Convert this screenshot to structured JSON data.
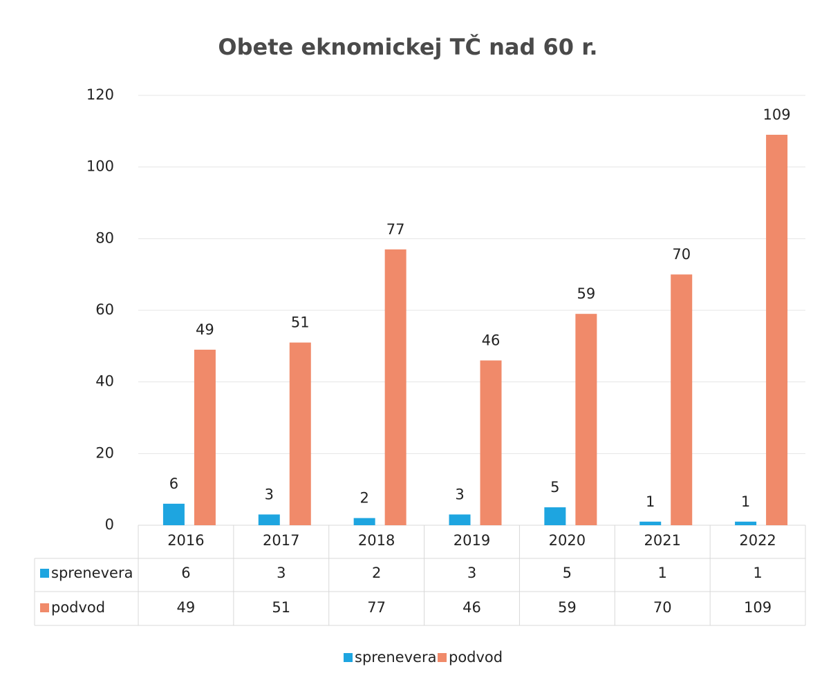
{
  "chart_data": {
    "type": "bar",
    "title": "Obete eknomickej TČ nad 60 r.",
    "categories": [
      "2016",
      "2017",
      "2018",
      "2019",
      "2020",
      "2021",
      "2022"
    ],
    "series": [
      {
        "name": "sprenevera",
        "color": "#1ea5e0",
        "values": [
          6,
          3,
          2,
          3,
          5,
          1,
          1
        ]
      },
      {
        "name": "podvod",
        "color": "#f08a6a",
        "values": [
          49,
          51,
          77,
          46,
          59,
          70,
          109
        ]
      }
    ],
    "ylim": [
      0,
      120
    ],
    "yticks": [
      0,
      20,
      40,
      60,
      80,
      100,
      120
    ],
    "grid": true,
    "legend": "bottom",
    "data_table": true
  }
}
